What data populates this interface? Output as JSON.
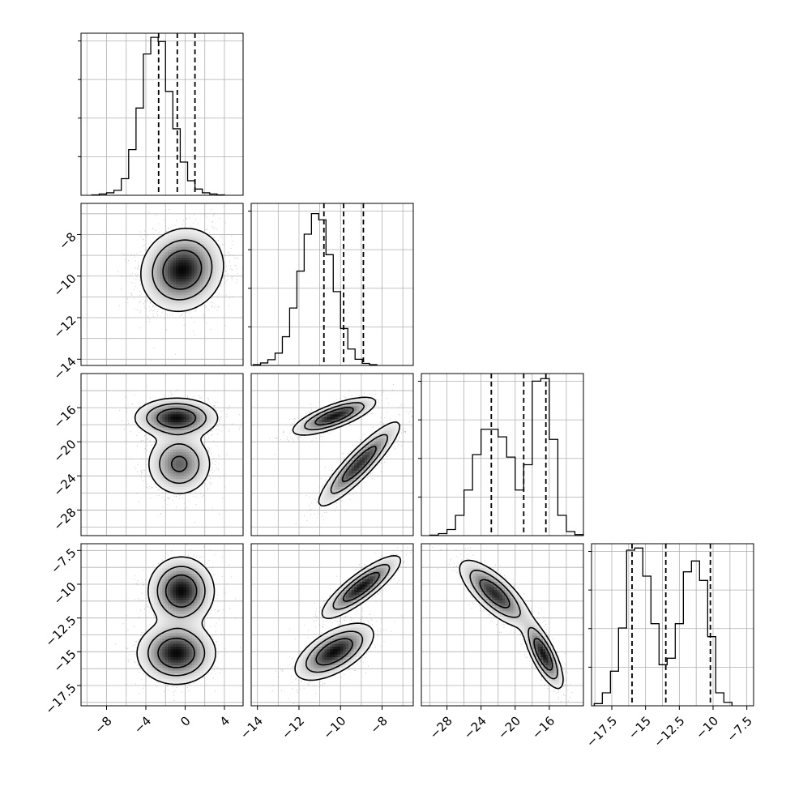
{
  "chart_data": {
    "type": "corner",
    "parameters": [
      {
        "range": [
          -10.6,
          5.9
        ],
        "ticks": [
          -8,
          -4,
          0,
          4
        ],
        "quantiles": [
          -2.7,
          -0.8,
          1.0
        ],
        "grid_step": 2
      },
      {
        "range": [
          -14.3,
          -6.5
        ],
        "ticks": [
          -14,
          -12,
          -10,
          -8
        ],
        "quantiles": [
          -10.8,
          -9.85,
          -8.9
        ],
        "grid_step": 1
      },
      {
        "range": [
          -31.0,
          -12.0
        ],
        "ticks": [
          -28,
          -24,
          -20,
          -16
        ],
        "quantiles": [
          -22.8,
          -19.0,
          -16.4
        ],
        "grid_step": 2
      },
      {
        "range": [
          -19.0,
          -7.0
        ],
        "ticks": [
          -17.5,
          -15.0,
          -12.5,
          -10.0,
          -7.5
        ],
        "quantiles": [
          -16.0,
          -13.5,
          -10.2
        ],
        "grid_step": 1.25
      }
    ],
    "histograms": [
      {
        "edges_start": -9.5,
        "bin_width": 0.75,
        "counts": [
          1,
          3,
          6,
          12,
          40,
          110,
          210,
          340,
          380,
          370,
          250,
          160,
          80,
          35,
          15,
          6,
          3,
          1
        ],
        "ymax": 390
      },
      {
        "edges_start": -14.2,
        "bin_width": 0.35,
        "counts": [
          2,
          6,
          14,
          30,
          70,
          140,
          230,
          320,
          370,
          355,
          270,
          180,
          90,
          40,
          15,
          5,
          2
        ],
        "ymax": 395
      },
      {
        "edges_start": -30.0,
        "bin_width": 1.0,
        "counts": [
          1,
          4,
          12,
          40,
          90,
          160,
          210,
          210,
          195,
          155,
          90,
          140,
          305,
          310,
          190,
          40,
          8,
          2
        ],
        "ymax": 320
      },
      {
        "edges_start": -18.8,
        "bin_width": 0.6,
        "counts": [
          5,
          30,
          80,
          180,
          360,
          365,
          300,
          190,
          95,
          110,
          190,
          310,
          335,
          290,
          160,
          30,
          8
        ],
        "ymax": 375
      }
    ],
    "pairs": [
      {
        "x_param": 0,
        "y_param": 1,
        "blobs": [
          {
            "cx": -0.3,
            "cy": -9.7,
            "sx": 2.0,
            "sy": 0.95,
            "rho": 0.1,
            "w": 1.0
          }
        ]
      },
      {
        "x_param": 0,
        "y_param": 2,
        "blobs": [
          {
            "cx": -0.9,
            "cy": -17.2,
            "sx": 2.0,
            "sy": 1.1,
            "rho": 0.0,
            "w": 1.0
          },
          {
            "cx": -0.6,
            "cy": -22.6,
            "sx": 1.6,
            "sy": 1.8,
            "rho": 0.0,
            "w": 0.7
          }
        ]
      },
      {
        "x_param": 1,
        "y_param": 2,
        "blobs": [
          {
            "cx": -10.3,
            "cy": -17.0,
            "sx": 0.95,
            "sy": 1.05,
            "rho": 0.75,
            "w": 1.0
          },
          {
            "cx": -9.1,
            "cy": -22.6,
            "sx": 0.95,
            "sy": 2.4,
            "rho": 0.9,
            "w": 0.9
          }
        ]
      },
      {
        "x_param": 0,
        "y_param": 3,
        "blobs": [
          {
            "cx": -0.4,
            "cy": -10.5,
            "sx": 1.6,
            "sy": 1.2,
            "rho": 0.0,
            "w": 1.0
          },
          {
            "cx": -0.9,
            "cy": -15.1,
            "sx": 1.9,
            "sy": 1.1,
            "rho": 0.0,
            "w": 1.0
          }
        ]
      },
      {
        "x_param": 1,
        "y_param": 3,
        "blobs": [
          {
            "cx": -9.0,
            "cy": -10.2,
            "sx": 0.9,
            "sy": 1.1,
            "rho": 0.85,
            "w": 1.0
          },
          {
            "cx": -10.3,
            "cy": -15.0,
            "sx": 0.9,
            "sy": 1.0,
            "rho": 0.6,
            "w": 1.0
          }
        ]
      },
      {
        "x_param": 2,
        "y_param": 3,
        "blobs": [
          {
            "cx": -22.4,
            "cy": -10.7,
            "sx": 2.0,
            "sy": 1.2,
            "rho": -0.75,
            "w": 1.0
          },
          {
            "cx": -16.7,
            "cy": -15.2,
            "sx": 1.1,
            "sy": 1.2,
            "rho": -0.75,
            "w": 1.1
          }
        ]
      }
    ]
  }
}
